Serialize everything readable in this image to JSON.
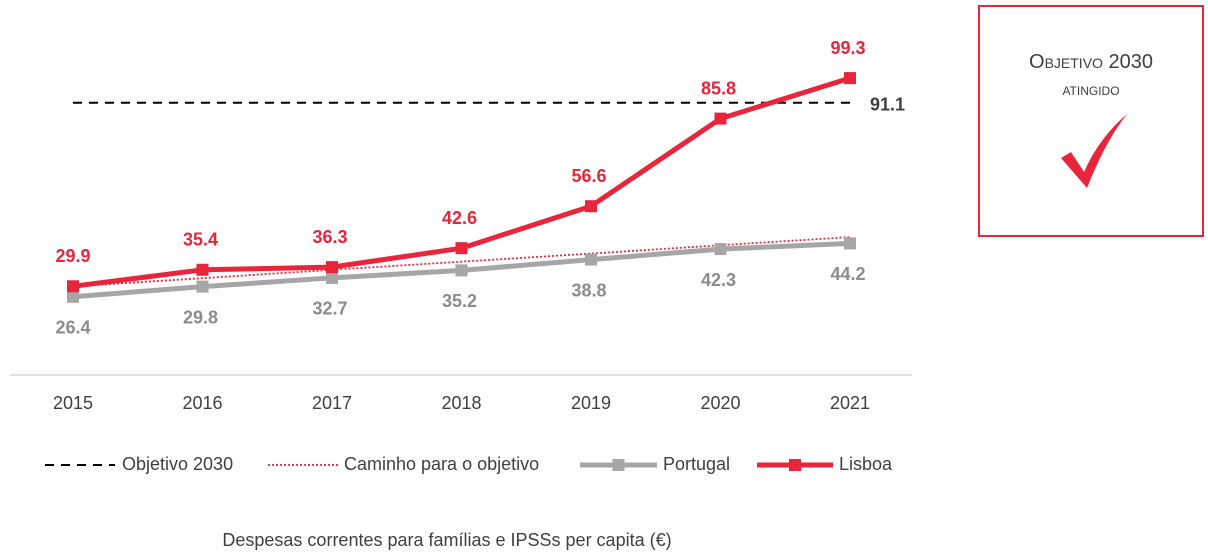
{
  "chart_data": {
    "type": "line",
    "x_label": "Despesas correntes para famílias e IPSSs per capita (€)",
    "categories": [
      "2015",
      "2016",
      "2017",
      "2018",
      "2019",
      "2020",
      "2021"
    ],
    "ylim": [
      0,
      120
    ],
    "reference_line": {
      "name": "Objetivo 2030",
      "value": 91.1,
      "color": "#000000"
    },
    "series": [
      {
        "name": "Caminho para o objetivo",
        "color": "#e8253b",
        "style": "dotted",
        "values": [
          29.9,
          32.6,
          35.4,
          38.1,
          40.8,
          43.6,
          46.3
        ]
      },
      {
        "name": "Portugal",
        "color": "#a6a6a6",
        "style": "solid",
        "labels": "below",
        "values": [
          26.4,
          29.8,
          32.7,
          35.2,
          38.8,
          42.3,
          44.2
        ]
      },
      {
        "name": "Lisboa",
        "color": "#e8253b",
        "style": "solid",
        "labels": "above",
        "values": [
          29.9,
          35.4,
          36.3,
          42.6,
          56.6,
          85.8,
          99.3
        ]
      }
    ],
    "annotation": {
      "title": "Objetivo 2030",
      "subtitle": "atingido",
      "color": "#e8253b"
    }
  }
}
